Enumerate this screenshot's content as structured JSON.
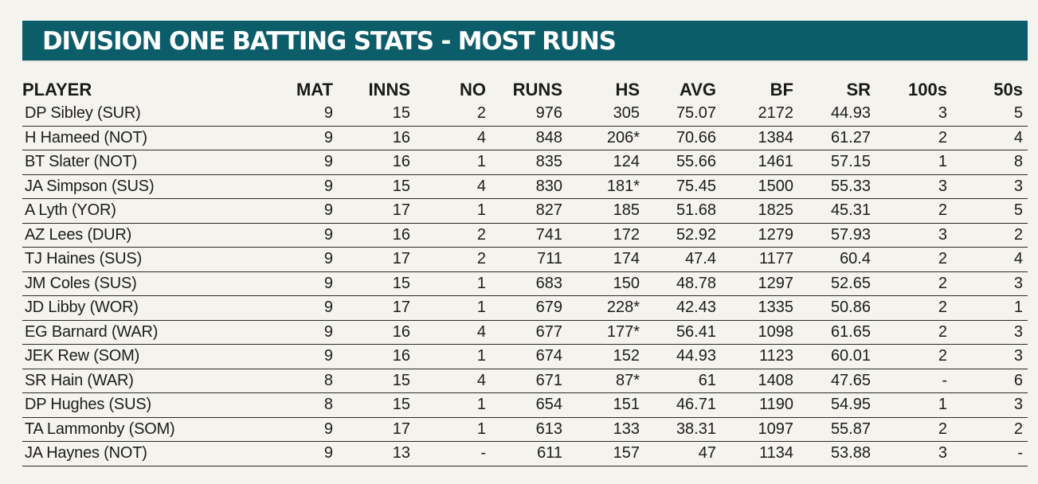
{
  "title": "DIVISION ONE BATTING STATS - MOST RUNS",
  "columns": [
    "PLAYER",
    "MAT",
    "INNS",
    "NO",
    "RUNS",
    "HS",
    "AVG",
    "BF",
    "SR",
    "100s",
    "50s"
  ],
  "rows": [
    [
      "DP Sibley (SUR)",
      "9",
      "15",
      "2",
      "976",
      "305",
      "75.07",
      "2172",
      "44.93",
      "3",
      "5"
    ],
    [
      "H Hameed (NOT)",
      "9",
      "16",
      "4",
      "848",
      "206*",
      "70.66",
      "1384",
      "61.27",
      "2",
      "4"
    ],
    [
      "BT Slater (NOT)",
      "9",
      "16",
      "1",
      "835",
      "124",
      "55.66",
      "1461",
      "57.15",
      "1",
      "8"
    ],
    [
      "JA Simpson (SUS)",
      "9",
      "15",
      "4",
      "830",
      "181*",
      "75.45",
      "1500",
      "55.33",
      "3",
      "3"
    ],
    [
      "A Lyth (YOR)",
      "9",
      "17",
      "1",
      "827",
      "185",
      "51.68",
      "1825",
      "45.31",
      "2",
      "5"
    ],
    [
      "AZ Lees (DUR)",
      "9",
      "16",
      "2",
      "741",
      "172",
      "52.92",
      "1279",
      "57.93",
      "3",
      "2"
    ],
    [
      "TJ Haines (SUS)",
      "9",
      "17",
      "2",
      "711",
      "174",
      "47.4",
      "1177",
      "60.4",
      "2",
      "4"
    ],
    [
      "JM Coles (SUS)",
      "9",
      "15",
      "1",
      "683",
      "150",
      "48.78",
      "1297",
      "52.65",
      "2",
      "3"
    ],
    [
      "JD Libby (WOR)",
      "9",
      "17",
      "1",
      "679",
      "228*",
      "42.43",
      "1335",
      "50.86",
      "2",
      "1"
    ],
    [
      "EG Barnard (WAR)",
      "9",
      "16",
      "4",
      "677",
      "177*",
      "56.41",
      "1098",
      "61.65",
      "2",
      "3"
    ],
    [
      "JEK Rew (SOM)",
      "9",
      "16",
      "1",
      "674",
      "152",
      "44.93",
      "1123",
      "60.01",
      "2",
      "3"
    ],
    [
      "SR Hain (WAR)",
      "8",
      "15",
      "4",
      "671",
      "87*",
      "61",
      "1408",
      "47.65",
      "-",
      "6"
    ],
    [
      "DP Hughes (SUS)",
      "8",
      "15",
      "1",
      "654",
      "151",
      "46.71",
      "1190",
      "54.95",
      "1",
      "3"
    ],
    [
      "TA Lammonby (SOM)",
      "9",
      "17",
      "1",
      "613",
      "133",
      "38.31",
      "1097",
      "55.87",
      "2",
      "2"
    ],
    [
      "JA Haynes (NOT)",
      "9",
      "13",
      "-",
      "611",
      "157",
      "47",
      "1134",
      "53.88",
      "3",
      "-"
    ]
  ],
  "colors": {
    "banner": "#0c5d6a",
    "background": "#f4f3ee",
    "text": "#1c1c1c",
    "rule": "#2a2a2a"
  }
}
